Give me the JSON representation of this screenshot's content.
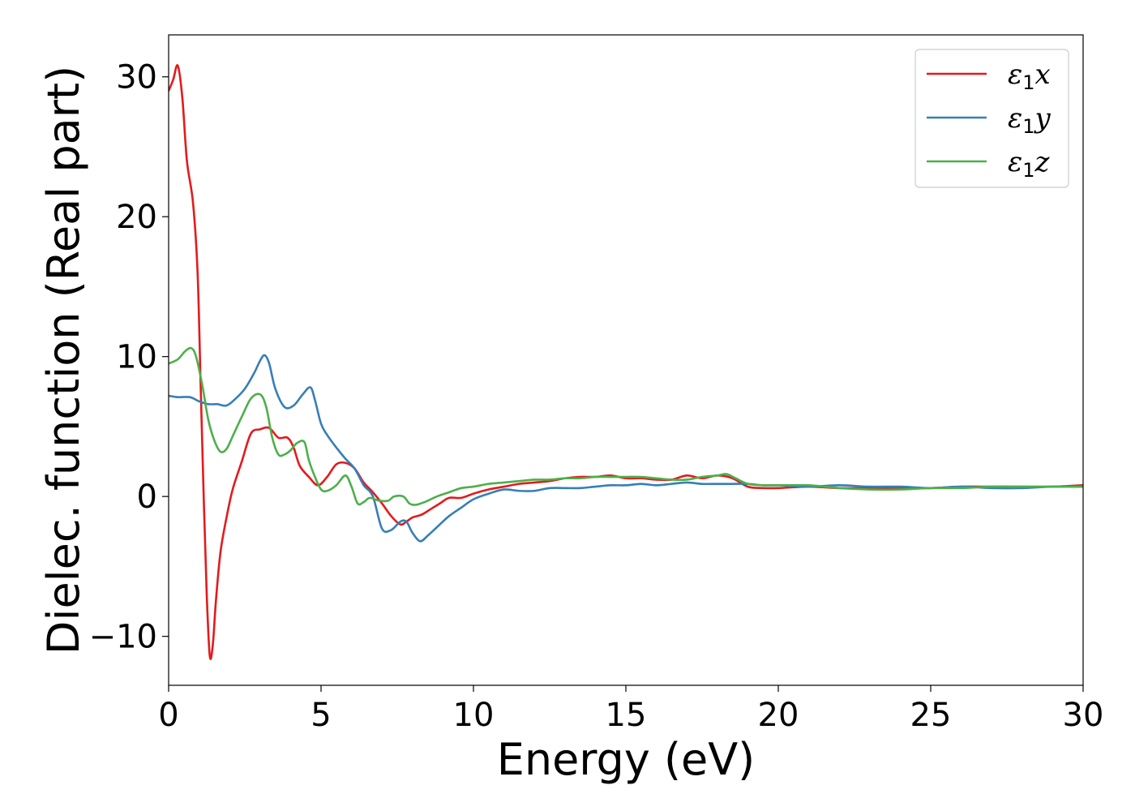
{
  "chart_data": {
    "type": "line",
    "title": "",
    "xlabel": "Energy (eV)",
    "ylabel": "Dielec. function (Real part)",
    "xlim": [
      0,
      30
    ],
    "ylim": [
      -13.5,
      33
    ],
    "xticks": [
      0,
      5,
      10,
      15,
      20,
      25,
      30
    ],
    "xtick_labels": [
      "0",
      "5",
      "10",
      "15",
      "20",
      "25",
      "30"
    ],
    "yticks": [
      -10,
      0,
      10,
      20,
      30
    ],
    "ytick_labels": [
      "−10",
      "0",
      "10",
      "20",
      "30"
    ],
    "grid": false,
    "legend_position": "top-right",
    "series": [
      {
        "name": "ε1x",
        "legend_base": "ε",
        "legend_sub": "1",
        "legend_var": "x",
        "color": "#e41a1c",
        "x": [
          0,
          0.15,
          0.3,
          0.45,
          0.6,
          0.8,
          0.95,
          1.05,
          1.15,
          1.25,
          1.35,
          1.45,
          1.55,
          1.7,
          1.9,
          2.1,
          2.4,
          2.7,
          3.0,
          3.3,
          3.6,
          3.9,
          4.1,
          4.3,
          4.6,
          4.9,
          5.2,
          5.5,
          5.8,
          6.1,
          6.4,
          6.7,
          7.0,
          7.3,
          7.6,
          7.8,
          8.0,
          8.3,
          8.6,
          8.9,
          9.2,
          9.6,
          10.0,
          10.5,
          11.0,
          11.5,
          12.0,
          12.5,
          13.0,
          13.5,
          14.0,
          14.5,
          15.0,
          15.5,
          16.0,
          16.5,
          17.0,
          17.5,
          18.0,
          18.5,
          19.0,
          19.5,
          20.0,
          21.0,
          22.0,
          23.0,
          24.0,
          25.0,
          26.0,
          27.0,
          28.0,
          29.0,
          30.0
        ],
        "y": [
          29,
          29.8,
          30.8,
          28.5,
          24,
          21,
          16,
          8,
          0,
          -7,
          -11.4,
          -10.6,
          -7.5,
          -4,
          -1.5,
          0.5,
          2.5,
          4.5,
          4.8,
          4.9,
          4.2,
          4.2,
          3.5,
          2.2,
          1.4,
          0.8,
          1.4,
          2.3,
          2.4,
          2.0,
          1.0,
          0.3,
          -0.5,
          -1.4,
          -2.0,
          -1.8,
          -1.5,
          -1.3,
          -0.9,
          -0.5,
          -0.1,
          -0.1,
          0.2,
          0.5,
          0.7,
          0.9,
          1.0,
          1.1,
          1.3,
          1.4,
          1.4,
          1.5,
          1.3,
          1.3,
          1.2,
          1.2,
          1.5,
          1.3,
          1.5,
          1.3,
          0.7,
          0.6,
          0.6,
          0.7,
          0.6,
          0.6,
          0.6,
          0.6,
          0.7,
          0.7,
          0.7,
          0.7,
          0.8
        ]
      },
      {
        "name": "ε1y",
        "legend_base": "ε",
        "legend_sub": "1",
        "legend_var": "y",
        "color": "#377eb8",
        "x": [
          0,
          0.3,
          0.7,
          1.0,
          1.3,
          1.6,
          1.9,
          2.2,
          2.5,
          2.8,
          3.0,
          3.15,
          3.3,
          3.5,
          3.8,
          4.1,
          4.4,
          4.65,
          4.8,
          5.0,
          5.2,
          5.5,
          5.8,
          6.1,
          6.4,
          6.7,
          7.0,
          7.3,
          7.6,
          7.8,
          8.0,
          8.25,
          8.5,
          8.8,
          9.2,
          9.6,
          10.0,
          10.5,
          11.0,
          11.5,
          12.0,
          12.5,
          13.0,
          13.5,
          14.0,
          14.5,
          15.0,
          15.5,
          16.0,
          16.5,
          17.0,
          17.5,
          18.0,
          18.5,
          19.0,
          19.5,
          20.0,
          21.0,
          22.0,
          23.0,
          24.0,
          25.0,
          26.0,
          27.0,
          28.0,
          29.0,
          30.0
        ],
        "y": [
          7.2,
          7.1,
          7.1,
          6.8,
          6.6,
          6.6,
          6.5,
          7.0,
          7.7,
          8.8,
          9.7,
          10.1,
          9.5,
          7.7,
          6.4,
          6.5,
          7.3,
          7.8,
          6.9,
          5.2,
          4.4,
          3.5,
          2.7,
          2.0,
          0.8,
          0.0,
          -2.3,
          -2.4,
          -1.8,
          -1.8,
          -2.6,
          -3.2,
          -2.8,
          -2.2,
          -1.4,
          -0.8,
          -0.2,
          0.2,
          0.5,
          0.4,
          0.4,
          0.6,
          0.6,
          0.6,
          0.7,
          0.8,
          0.8,
          0.9,
          0.8,
          0.9,
          1.0,
          0.9,
          0.9,
          0.9,
          0.9,
          0.8,
          0.8,
          0.7,
          0.8,
          0.7,
          0.7,
          0.6,
          0.7,
          0.6,
          0.6,
          0.7,
          0.7
        ]
      },
      {
        "name": "ε1z",
        "legend_base": "ε",
        "legend_sub": "1",
        "legend_var": "z",
        "color": "#4daf4a",
        "x": [
          0,
          0.3,
          0.55,
          0.75,
          0.9,
          1.1,
          1.3,
          1.5,
          1.7,
          1.9,
          2.1,
          2.4,
          2.7,
          3.0,
          3.2,
          3.4,
          3.6,
          3.8,
          4.0,
          4.2,
          4.45,
          4.6,
          4.8,
          5.0,
          5.2,
          5.5,
          5.8,
          6.0,
          6.2,
          6.4,
          6.6,
          6.9,
          7.2,
          7.4,
          7.7,
          7.9,
          8.1,
          8.4,
          8.8,
          9.2,
          9.6,
          10.0,
          10.5,
          11.0,
          11.5,
          12.0,
          12.5,
          13.0,
          13.5,
          14.0,
          14.5,
          15.0,
          15.5,
          16.0,
          16.5,
          17.0,
          17.5,
          18.0,
          18.3,
          18.6,
          19.0,
          19.5,
          20.0,
          21.0,
          22.0,
          23.0,
          24.0,
          25.0,
          26.0,
          27.0,
          28.0,
          29.0,
          30.0
        ],
        "y": [
          9.5,
          9.8,
          10.4,
          10.6,
          10.0,
          8.0,
          5.5,
          4.0,
          3.2,
          3.4,
          4.3,
          5.7,
          7.0,
          7.3,
          6.4,
          4.2,
          3.0,
          3.0,
          3.3,
          3.8,
          3.9,
          2.6,
          1.4,
          0.5,
          0.4,
          0.8,
          1.5,
          0.7,
          -0.5,
          -0.4,
          -0.1,
          -0.3,
          -0.3,
          0.0,
          0.0,
          -0.5,
          -0.6,
          -0.4,
          0.0,
          0.3,
          0.6,
          0.7,
          0.9,
          1.0,
          1.1,
          1.2,
          1.2,
          1.3,
          1.3,
          1.4,
          1.4,
          1.4,
          1.4,
          1.3,
          1.2,
          1.2,
          1.4,
          1.5,
          1.6,
          1.3,
          0.9,
          0.8,
          0.8,
          0.8,
          0.6,
          0.5,
          0.5,
          0.6,
          0.6,
          0.7,
          0.7,
          0.7,
          0.7
        ]
      }
    ]
  }
}
